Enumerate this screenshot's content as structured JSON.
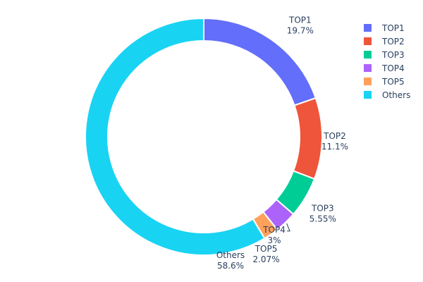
{
  "chart_data": {
    "type": "pie",
    "hole": true,
    "direction": "clockwise",
    "legend_position": "top-right",
    "slices": [
      {
        "label": "TOP1",
        "value": 19.7,
        "pct_text": "19.7%",
        "color": "#636efa"
      },
      {
        "label": "TOP2",
        "value": 11.1,
        "pct_text": "11.1%",
        "color": "#ef553b"
      },
      {
        "label": "TOP3",
        "value": 5.55,
        "pct_text": "5.55%",
        "color": "#00cc96"
      },
      {
        "label": "TOP4",
        "value": 3.0,
        "pct_text": "3%",
        "color": "#ab63fa"
      },
      {
        "label": "TOP5",
        "value": 2.07,
        "pct_text": "2.07%",
        "color": "#ffa15a"
      },
      {
        "label": "Others",
        "value": 58.6,
        "pct_text": "58.6%",
        "color": "#19d3f3"
      }
    ]
  }
}
